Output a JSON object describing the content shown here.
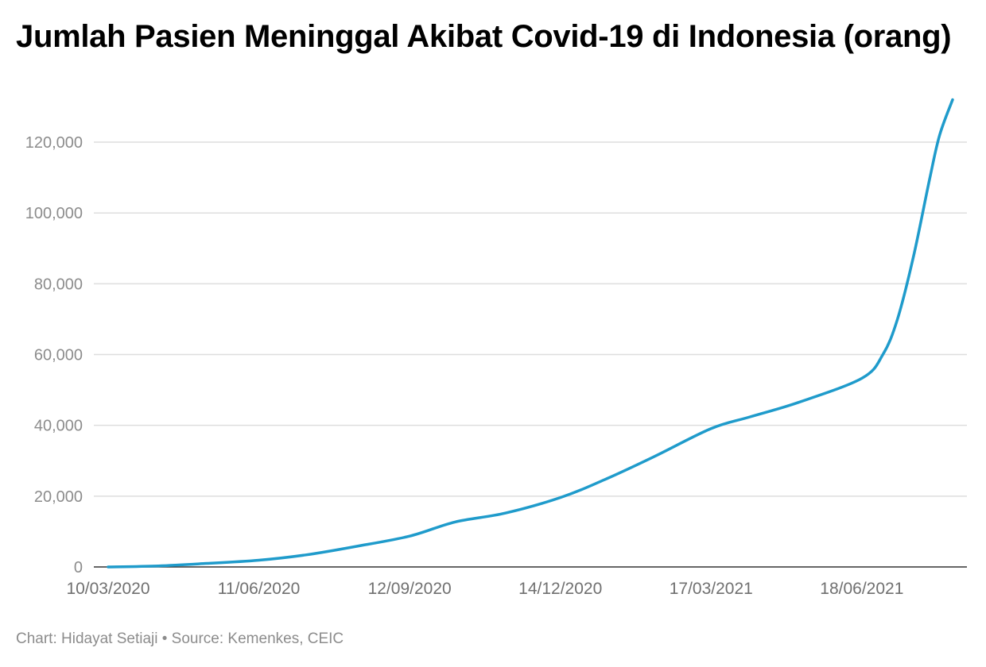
{
  "header": {
    "title": "Jumlah Pasien Meninggal Akibat Covid-19 di Indonesia (orang)"
  },
  "footer": {
    "credit": "Chart: Hidayat Setiaji • Source: Kemenkes, CEIC"
  },
  "colors": {
    "line": "#1f9bcb",
    "grid": "#dedede",
    "axis": "#333333",
    "tick_label": "#8c8c8c"
  },
  "chart_data": {
    "type": "line",
    "title": "Jumlah Pasien Meninggal Akibat Covid-19 di Indonesia (orang)",
    "xlabel": "",
    "ylabel": "",
    "x_ticks": [
      "10/03/2020",
      "11/06/2020",
      "12/09/2020",
      "14/12/2020",
      "17/03/2021",
      "18/06/2021"
    ],
    "y_ticks": [
      "0",
      "20,000",
      "40,000",
      "60,000",
      "80,000",
      "100,000",
      "120,000"
    ],
    "y_tick_values": [
      0,
      20000,
      40000,
      60000,
      80000,
      100000,
      120000
    ],
    "ylim": [
      0,
      131000
    ],
    "xlim": [
      "10/03/2020",
      "13/08/2021"
    ],
    "grid": true,
    "legend": "none",
    "series": [
      {
        "x": [
          "10/03/2020",
          "10/04/2020",
          "10/05/2020",
          "11/06/2020",
          "10/07/2020",
          "10/08/2020",
          "12/09/2020",
          "10/10/2020",
          "10/11/2020",
          "14/12/2020",
          "10/01/2021",
          "10/02/2021",
          "17/03/2021",
          "10/04/2021",
          "10/05/2021",
          "18/06/2021",
          "01/07/2021",
          "10/07/2021",
          "20/07/2021",
          "30/07/2021",
          "05/08/2021",
          "13/08/2021"
        ],
        "y": [
          1,
          300,
          1000,
          1900,
          3400,
          5800,
          8700,
          12700,
          15200,
          19600,
          24600,
          31200,
          39100,
          42400,
          46500,
          53300,
          60000,
          70000,
          88000,
          110000,
          122000,
          132000
        ]
      }
    ]
  }
}
